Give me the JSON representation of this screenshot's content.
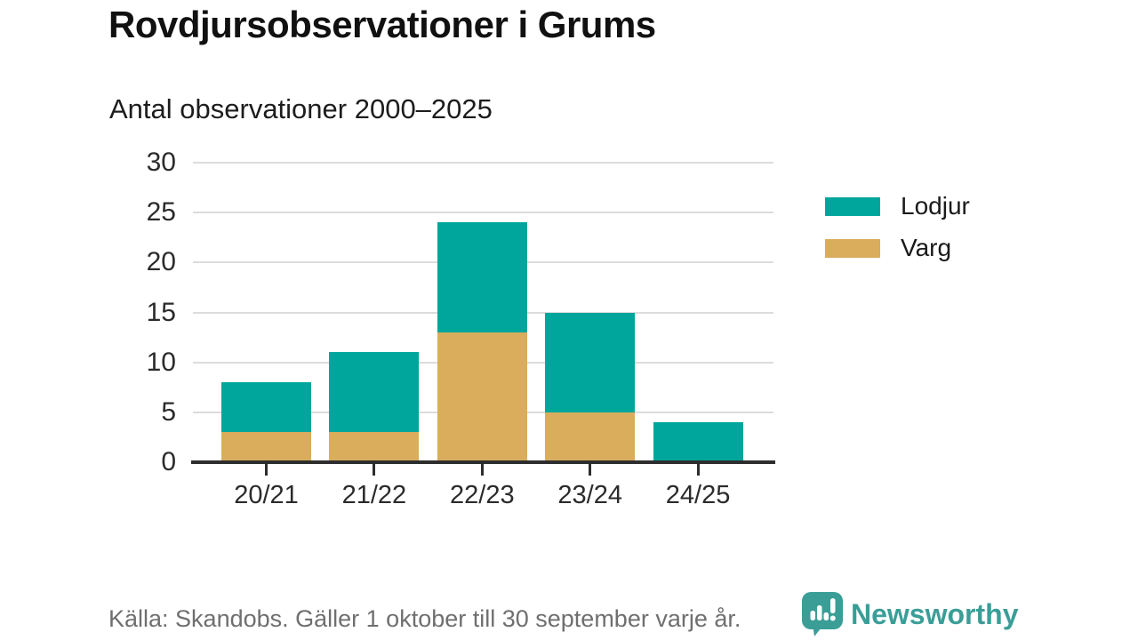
{
  "title": "Rovdjursobservationer i Grums",
  "subtitle": "Antal observationer 2000–2025",
  "footer": {
    "source": "Källa: Skandobs. Gäller 1 oktober till 30 september varje år."
  },
  "branding": {
    "name": "Newsworthy",
    "logo_icon": "bar-chart-speech-bubble-icon",
    "color": "#3a9e97"
  },
  "colors": {
    "lodjur": "#00a69b",
    "varg": "#d9ad5c",
    "grid": "#dcdcdc",
    "axis": "#2d2d2d",
    "tick_text": "#2b2b2b",
    "footer_text": "#6f6f6f"
  },
  "chart_data": {
    "type": "bar",
    "stacked": true,
    "title": "Rovdjursobservationer i Grums",
    "subtitle": "Antal observationer 2000–2025",
    "categories": [
      "20/21",
      "21/22",
      "22/23",
      "23/24",
      "24/25"
    ],
    "series": [
      {
        "name": "Varg",
        "color": "#d9ad5c",
        "values": [
          3,
          3,
          13,
          5,
          0
        ]
      },
      {
        "name": "Lodjur",
        "color": "#00a69b",
        "values": [
          5,
          8,
          11,
          10,
          4
        ]
      }
    ],
    "totals": [
      8,
      11,
      24,
      15,
      4
    ],
    "xlabel": "",
    "ylabel": "",
    "ylim": [
      0,
      30
    ],
    "y_ticks": [
      0,
      5,
      10,
      15,
      20,
      25,
      30
    ],
    "grid": true,
    "legend_position": "right",
    "legend": [
      {
        "label": "Lodjur",
        "color": "#00a69b"
      },
      {
        "label": "Varg",
        "color": "#d9ad5c"
      }
    ]
  }
}
